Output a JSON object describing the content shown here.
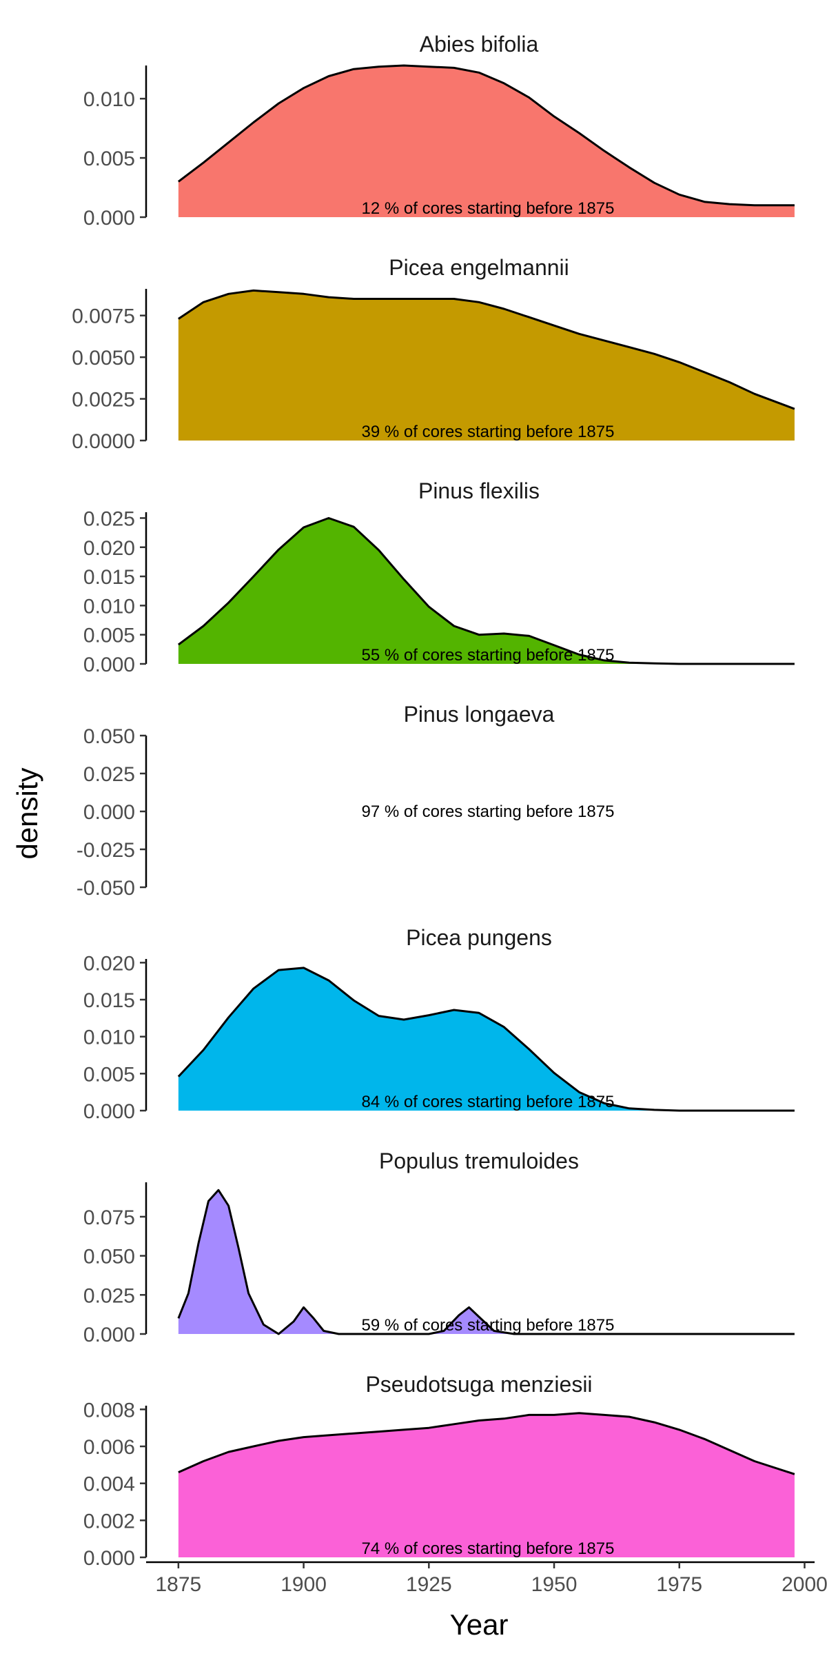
{
  "chart_data": {
    "type": "area",
    "subtype": "faceted density plot",
    "xlabel": "Year",
    "ylabel": "density",
    "xlim": [
      1875,
      1998
    ],
    "xaxis_range": [
      1868,
      2002
    ],
    "x_ticks": [
      "1875",
      "1900",
      "1925",
      "1950",
      "1975",
      "2000"
    ],
    "x_tick_values": [
      1875,
      1900,
      1925,
      1950,
      1975,
      2000
    ],
    "grid": false,
    "legend": "none",
    "line_color": "#000000",
    "panels": [
      {
        "title": "Abies bifolia",
        "fill": "#F8766D",
        "annotation": "12 % of cores starting before 1875",
        "ylim": [
          0,
          0.0128
        ],
        "y_ticks": [
          "0.000",
          "0.005",
          "0.010"
        ],
        "y_tick_values": [
          0,
          0.005,
          0.01
        ],
        "x": [
          1875,
          1880,
          1885,
          1890,
          1895,
          1900,
          1905,
          1910,
          1915,
          1920,
          1925,
          1930,
          1935,
          1940,
          1945,
          1950,
          1955,
          1960,
          1965,
          1970,
          1975,
          1980,
          1985,
          1990,
          1998
        ],
        "density": [
          0.003,
          0.0046,
          0.0063,
          0.008,
          0.0096,
          0.0109,
          0.0119,
          0.0125,
          0.0127,
          0.0128,
          0.0127,
          0.0126,
          0.0122,
          0.0113,
          0.0101,
          0.0085,
          0.0071,
          0.0056,
          0.0042,
          0.0029,
          0.0019,
          0.0013,
          0.0011,
          0.001,
          0.001
        ]
      },
      {
        "title": "Picea engelmannii",
        "fill": "#C49A00",
        "annotation": "39 % of cores starting before 1875",
        "ylim": [
          0,
          0.0091
        ],
        "y_ticks": [
          "0.0000",
          "0.0025",
          "0.0050",
          "0.0075"
        ],
        "y_tick_values": [
          0,
          0.0025,
          0.005,
          0.0075
        ],
        "x": [
          1875,
          1880,
          1885,
          1890,
          1895,
          1900,
          1905,
          1910,
          1915,
          1920,
          1925,
          1930,
          1935,
          1940,
          1945,
          1950,
          1955,
          1960,
          1965,
          1970,
          1975,
          1980,
          1985,
          1990,
          1998
        ],
        "density": [
          0.0073,
          0.0083,
          0.0088,
          0.009,
          0.0089,
          0.0088,
          0.0086,
          0.0085,
          0.0085,
          0.0085,
          0.0085,
          0.0085,
          0.0083,
          0.0079,
          0.0074,
          0.0069,
          0.0064,
          0.006,
          0.0056,
          0.0052,
          0.0047,
          0.0041,
          0.0035,
          0.0028,
          0.0019
        ]
      },
      {
        "title": "Pinus flexilis",
        "fill": "#53B400",
        "annotation": "55 % of cores starting before 1875",
        "ylim": [
          0,
          0.026
        ],
        "y_ticks": [
          "0.000",
          "0.005",
          "0.010",
          "0.015",
          "0.020",
          "0.025"
        ],
        "y_tick_values": [
          0,
          0.005,
          0.01,
          0.015,
          0.02,
          0.025
        ],
        "x": [
          1875,
          1880,
          1885,
          1890,
          1895,
          1900,
          1905,
          1910,
          1915,
          1920,
          1925,
          1930,
          1935,
          1940,
          1945,
          1950,
          1955,
          1960,
          1965,
          1970,
          1975,
          1980,
          1985,
          1990,
          1998
        ],
        "density": [
          0.0033,
          0.0065,
          0.0105,
          0.015,
          0.0196,
          0.0234,
          0.025,
          0.0235,
          0.0195,
          0.0145,
          0.0098,
          0.0065,
          0.005,
          0.0052,
          0.0048,
          0.0032,
          0.0016,
          0.0006,
          0.0002,
          0.0001,
          0.0,
          0.0,
          0.0,
          0.0,
          0.0
        ]
      },
      {
        "title": "Pinus longaeva",
        "fill": "#00C094",
        "annotation": "97 % of cores starting before 1875",
        "ylim": [
          -0.05,
          0.05
        ],
        "y_ticks": [
          "-0.050",
          "-0.025",
          "0.000",
          "0.025",
          "0.050"
        ],
        "y_tick_values": [
          -0.05,
          -0.025,
          0,
          0.025,
          0.05
        ],
        "x": [],
        "density": []
      },
      {
        "title": "Picea pungens",
        "fill": "#00B6EB",
        "annotation": "84 % of cores starting before 1875",
        "ylim": [
          0,
          0.0205
        ],
        "y_ticks": [
          "0.000",
          "0.005",
          "0.010",
          "0.015",
          "0.020"
        ],
        "y_tick_values": [
          0,
          0.005,
          0.01,
          0.015,
          0.02
        ],
        "x": [
          1875,
          1880,
          1885,
          1890,
          1895,
          1900,
          1905,
          1910,
          1915,
          1920,
          1925,
          1930,
          1935,
          1940,
          1945,
          1950,
          1955,
          1960,
          1965,
          1970,
          1975,
          1980,
          1985,
          1990,
          1998
        ],
        "density": [
          0.0046,
          0.0082,
          0.0126,
          0.0165,
          0.019,
          0.0193,
          0.0176,
          0.0149,
          0.0128,
          0.0123,
          0.0129,
          0.0136,
          0.0132,
          0.0113,
          0.0083,
          0.0051,
          0.0025,
          0.001,
          0.0003,
          0.0001,
          0.0,
          0.0,
          0.0,
          0.0,
          0.0
        ]
      },
      {
        "title": "Populus tremuloides",
        "fill": "#A58AFF",
        "annotation": "59 % of cores starting before 1875",
        "ylim": [
          0,
          0.097
        ],
        "y_ticks": [
          "0.000",
          "0.025",
          "0.050",
          "0.075"
        ],
        "y_tick_values": [
          0,
          0.025,
          0.05,
          0.075
        ],
        "x": [
          1875,
          1877,
          1879,
          1881,
          1883,
          1885,
          1887,
          1889,
          1892,
          1895,
          1898,
          1900,
          1902,
          1904,
          1907,
          1910,
          1915,
          1920,
          1925,
          1928,
          1931,
          1933,
          1935,
          1938,
          1942,
          1950,
          1960,
          1975,
          1998
        ],
        "density": [
          0.01,
          0.026,
          0.058,
          0.085,
          0.092,
          0.082,
          0.055,
          0.026,
          0.006,
          0.0,
          0.008,
          0.017,
          0.01,
          0.002,
          0.0,
          0.0,
          0.0,
          0.0,
          0.0,
          0.002,
          0.012,
          0.017,
          0.011,
          0.002,
          0.0,
          0.0,
          0.0,
          0.0,
          0.0
        ]
      },
      {
        "title": "Pseudotsuga menziesii",
        "fill": "#FB61D7",
        "annotation": "74 % of cores starting before 1875",
        "ylim": [
          0,
          0.0082
        ],
        "y_ticks": [
          "0.000",
          "0.002",
          "0.004",
          "0.006",
          "0.008"
        ],
        "y_tick_values": [
          0,
          0.002,
          0.004,
          0.006,
          0.008
        ],
        "x": [
          1875,
          1880,
          1885,
          1890,
          1895,
          1900,
          1905,
          1910,
          1915,
          1920,
          1925,
          1930,
          1935,
          1940,
          1945,
          1950,
          1955,
          1960,
          1965,
          1970,
          1975,
          1980,
          1985,
          1990,
          1998
        ],
        "density": [
          0.0046,
          0.0052,
          0.0057,
          0.006,
          0.0063,
          0.0065,
          0.0066,
          0.0067,
          0.0068,
          0.0069,
          0.007,
          0.0072,
          0.0074,
          0.0075,
          0.0077,
          0.0077,
          0.0078,
          0.0077,
          0.0076,
          0.0073,
          0.0069,
          0.0064,
          0.0058,
          0.0052,
          0.0045
        ]
      }
    ]
  }
}
